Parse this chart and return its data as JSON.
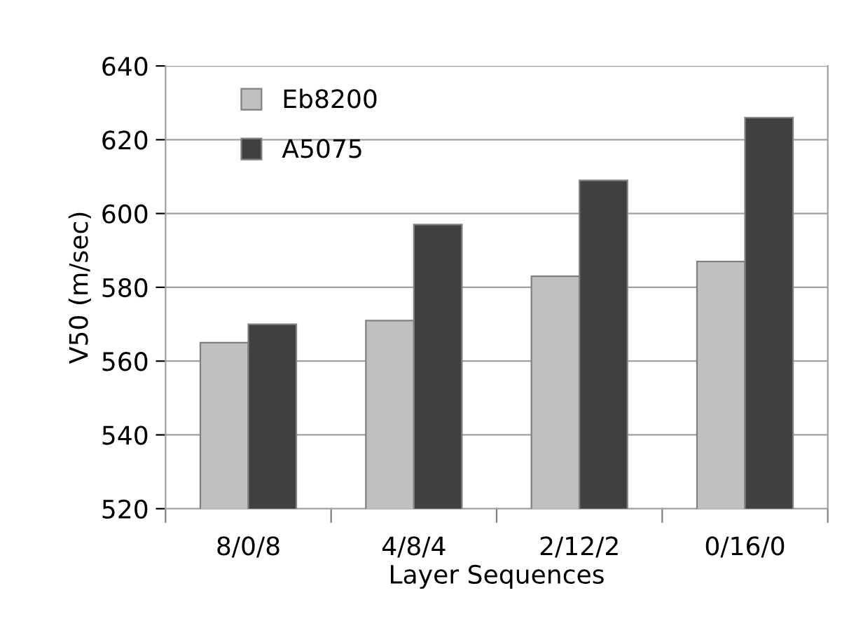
{
  "chart_data": {
    "type": "bar",
    "xlabel": "Layer Sequences",
    "ylabel": "V50 (m/sec)",
    "categories": [
      "8/0/8",
      "4/8/4",
      "2/12/2",
      "0/16/0"
    ],
    "series": [
      {
        "name": "Eb8200",
        "color": "#c0c0c0",
        "values": [
          565,
          571,
          583,
          587
        ]
      },
      {
        "name": "A5075",
        "color": "#404040",
        "values": [
          570,
          597,
          609,
          626
        ]
      }
    ],
    "ylim": [
      520,
      640
    ],
    "yticks": [
      520,
      540,
      560,
      580,
      600,
      620,
      640
    ],
    "grid": "y",
    "legend": "top left"
  }
}
